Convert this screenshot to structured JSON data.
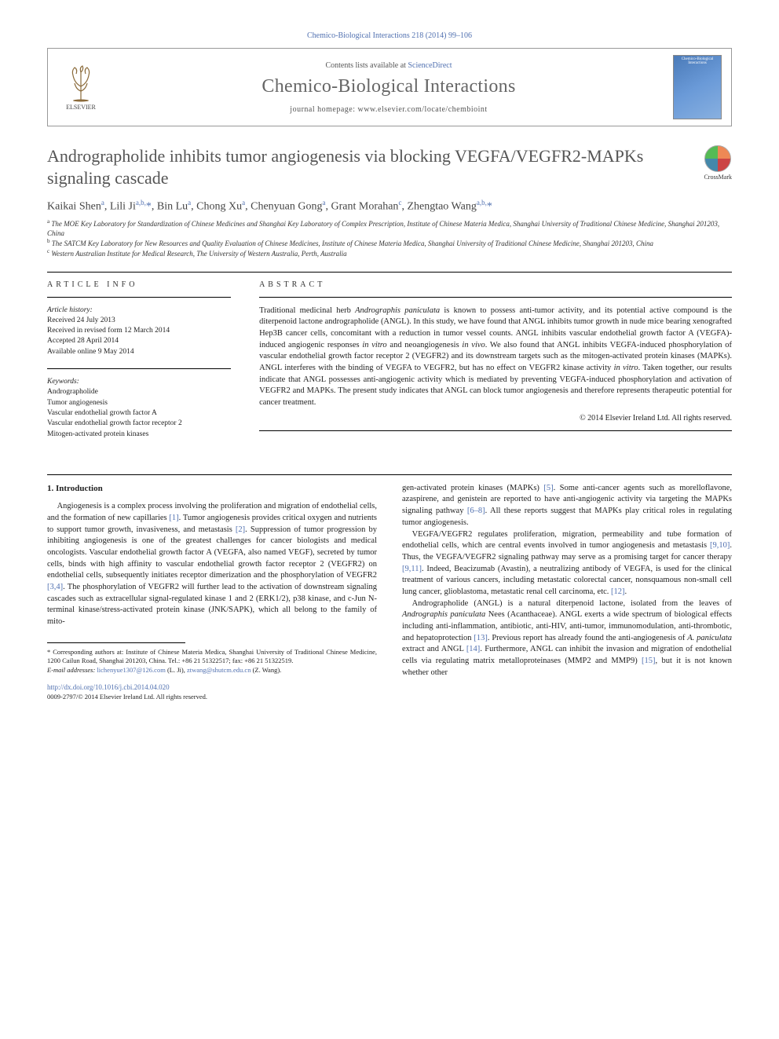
{
  "header": {
    "citation": "Chemico-Biological Interactions 218 (2014) 99–106",
    "contents_prefix": "Contents lists available at ",
    "contents_link": "ScienceDirect",
    "journal_name": "Chemico-Biological Interactions",
    "homepage_prefix": "journal homepage: ",
    "homepage_url": "www.elsevier.com/locate/chembioint",
    "elsevier_label": "ELSEVIER",
    "cover_label": "Chemico-Biological Interactions"
  },
  "crossmark": {
    "label": "CrossMark"
  },
  "article": {
    "title": "Andrographolide inhibits tumor angiogenesis via blocking VEGFA/VEGFR2-MAPKs signaling cascade",
    "authors_html": "Kaikai Shen<sup>a</sup>, Lili Ji<sup>a,b,</sup><span class='star'>*</span>, Bin Lu<sup>a</sup>, Chong Xu<sup>a</sup>, Chenyuan Gong<sup>a</sup>, Grant Morahan<sup>c</sup>, Zhengtao Wang<sup>a,b,</sup><span class='star'>*</span>",
    "affiliations": [
      "a The MOE Key Laboratory for Standardization of Chinese Medicines and Shanghai Key Laboratory of Complex Prescription, Institute of Chinese Materia Medica, Shanghai University of Traditional Chinese Medicine, Shanghai 201203, China",
      "b The SATCM Key Laboratory for New Resources and Quality Evaluation of Chinese Medicines, Institute of Chinese Materia Medica, Shanghai University of Traditional Chinese Medicine, Shanghai 201203, China",
      "c Western Australian Institute for Medical Research, The University of Western Australia, Perth, Australia"
    ]
  },
  "info": {
    "heading": "ARTICLE INFO",
    "history_label": "Article history:",
    "history": [
      "Received 24 July 2013",
      "Received in revised form 12 March 2014",
      "Accepted 28 April 2014",
      "Available online 9 May 2014"
    ],
    "keywords_label": "Keywords:",
    "keywords": [
      "Andrographolide",
      "Tumor angiogenesis",
      "Vascular endothelial growth factor A",
      "Vascular endothelial growth factor receptor 2",
      "Mitogen-activated protein kinases"
    ]
  },
  "abstract": {
    "heading": "ABSTRACT",
    "text": "Traditional medicinal herb Andrographis paniculata is known to possess anti-tumor activity, and its potential active compound is the diterpenoid lactone andrographolide (ANGL). In this study, we have found that ANGL inhibits tumor growth in nude mice bearing xenografted Hep3B cancer cells, concomitant with a reduction in tumor vessel counts. ANGL inhibits vascular endothelial growth factor A (VEGFA)-induced angiogenic responses in vitro and neoangiogenesis in vivo. We also found that ANGL inhibits VEGFA-induced phosphorylation of vascular endothelial growth factor receptor 2 (VEGFR2) and its downstream targets such as the mitogen-activated protein kinases (MAPKs). ANGL interferes with the binding of VEGFA to VEGFR2, but has no effect on VEGFR2 kinase activity in vitro. Taken together, our results indicate that ANGL possesses anti-angiogenic activity which is mediated by preventing VEGFA-induced phosphorylation and activation of VEGFR2 and MAPKs. The present study indicates that ANGL can block tumor angiogenesis and therefore represents therapeutic potential for cancer treatment.",
    "copyright": "© 2014 Elsevier Ireland Ltd. All rights reserved."
  },
  "body": {
    "section_heading": "1. Introduction",
    "col1_p1": "Angiogenesis is a complex process involving the proliferation and migration of endothelial cells, and the formation of new capillaries [1]. Tumor angiogenesis provides critical oxygen and nutrients to support tumor growth, invasiveness, and metastasis [2]. Suppression of tumor progression by inhibiting angiogenesis is one of the greatest challenges for cancer biologists and medical oncologists. Vascular endothelial growth factor A (VEGFA, also named VEGF), secreted by tumor cells, binds with high affinity to vascular endothelial growth factor receptor 2 (VEGFR2) on endothelial cells, subsequently initiates receptor dimerization and the phosphorylation of VEGFR2 [3,4]. The phosphorylation of VEGFR2 will further lead to the activation of downstream signaling cascades such as extracellular signal-regulated kinase 1 and 2 (ERK1/2), p38 kinase, and c-Jun N-terminal kinase/stress-activated protein kinase (JNK/SAPK), which all belong to the family of mito-",
    "col2_p1": "gen-activated protein kinases (MAPKs) [5]. Some anti-cancer agents such as morelloflavone, azaspirene, and genistein are reported to have anti-angiogenic activity via targeting the MAPKs signaling pathway [6–8]. All these reports suggest that MAPKs play critical roles in regulating tumor angiogenesis.",
    "col2_p2": "VEGFA/VEGFR2 regulates proliferation, migration, permeability and tube formation of endothelial cells, which are central events involved in tumor angiogenesis and metastasis [9,10]. Thus, the VEGFA/VEGFR2 signaling pathway may serve as a promising target for cancer therapy [9,11]. Indeed, Beacizumab (Avastin), a neutralizing antibody of VEGFA, is used for the clinical treatment of various cancers, including metastatic colorectal cancer, nonsquamous non-small cell lung cancer, glioblastoma, metastatic renal cell carcinoma, etc. [12].",
    "col2_p3": "Andrographolide (ANGL) is a natural diterpenoid lactone, isolated from the leaves of Andrographis paniculata Nees (Acanthaceae). ANGL exerts a wide spectrum of biological effects including anti-inflammation, antibiotic, anti-HIV, anti-tumor, immunomodulation, anti-thrombotic, and hepatoprotection [13]. Previous report has already found the anti-angiogenesis of A. paniculata extract and ANGL [14]. Furthermore, ANGL can inhibit the invasion and migration of endothelial cells via regulating matrix metalloproteinases (MMP2 and MMP9) [15], but it is not known whether other"
  },
  "footnote": {
    "corr": "* Corresponding authors at: Institute of Chinese Materia Medica, Shanghai University of Traditional Chinese Medicine, 1200 Cailun Road, Shanghai 201203, China. Tel.: +86 21 51322517; fax: +86 21 51322519.",
    "email_label": "E-mail addresses:",
    "email1": "lichenyue1307@126.com",
    "email1_who": " (L. Ji), ",
    "email2": "ztwang@shutcm.edu.cn",
    "email2_who": " (Z. Wang).",
    "doi_url": "http://dx.doi.org/10.1016/j.cbi.2014.04.020",
    "copy": "0009-2797/© 2014 Elsevier Ireland Ltd. All rights reserved."
  },
  "refs_in_text": [
    "[1]",
    "[2]",
    "[3,4]",
    "[5]",
    "[6–8]",
    "[9,10]",
    "[9,11]",
    "[12]",
    "[13]",
    "[14]",
    "[15]"
  ],
  "colors": {
    "link": "#5070b0",
    "heading": "#555555",
    "body": "#222222"
  },
  "typography": {
    "body_fontsize_pt": 10.5,
    "title_fontsize_pt": 22,
    "journal_fontsize_pt": 24,
    "footnote_fontsize_pt": 8.5
  }
}
